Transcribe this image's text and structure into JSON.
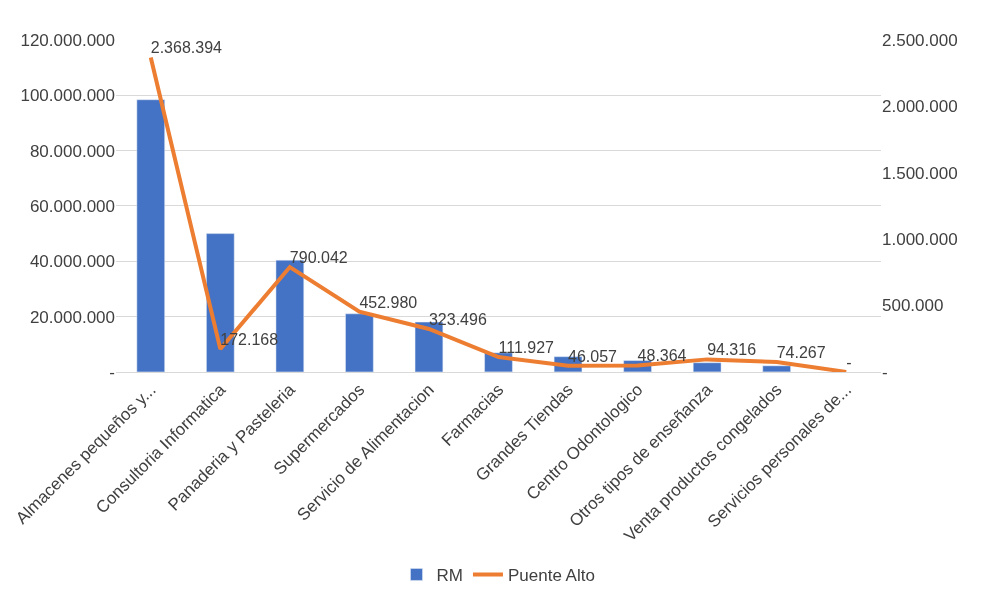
{
  "chart_data": {
    "type": "bar",
    "categories": [
      "Almacenes pequeños y...",
      "Consultoria Informatica",
      "Panaderia y Pasteleria",
      "Supermercados",
      "Servicio de Alimentacion",
      "Farmacias",
      "Grandes Tiendas",
      "Centro Odontologico",
      "Otros tipos de enseñanza",
      "Venta productos congelados",
      "Servicios personales de..."
    ],
    "series": [
      {
        "name": "RM",
        "color": "#4472c4",
        "values": [
          98400000,
          50000000,
          40400000,
          21000000,
          18000000,
          6900000,
          5500000,
          4100000,
          3300000,
          2200000,
          null
        ]
      },
      {
        "name": "Puente Alto",
        "type": "line",
        "axis": "y2",
        "color": "#ed7d31",
        "values": [
          2368394,
          172168,
          790042,
          452980,
          323496,
          111927,
          46057,
          48364,
          94316,
          74267,
          0
        ],
        "value_labels": [
          "2.368.394",
          "172.168",
          "790.042",
          "452.980",
          "323.496",
          "111.927",
          "46.057",
          "48.364",
          "94.316",
          "74.267",
          "-"
        ]
      }
    ],
    "ylim": [
      0,
      120000000
    ],
    "yticks": [
      {
        "value": 0,
        "label": "-"
      },
      {
        "value": 20000000,
        "label": "20.000.000"
      },
      {
        "value": 40000000,
        "label": "40.000.000"
      },
      {
        "value": 60000000,
        "label": "60.000.000"
      },
      {
        "value": 80000000,
        "label": "80.000.000"
      },
      {
        "value": 100000000,
        "label": "100.000.000"
      },
      {
        "value": 120000000,
        "label": "120.000.000"
      }
    ],
    "y2lim": [
      0,
      2500000
    ],
    "y2ticks": [
      {
        "value": 0,
        "label": "-"
      },
      {
        "value": 500000,
        "label": "500.000"
      },
      {
        "value": 1000000,
        "label": "1.000.000"
      },
      {
        "value": 1500000,
        "label": "1.500.000"
      },
      {
        "value": 2000000,
        "label": "2.000.000"
      },
      {
        "value": 2500000,
        "label": "2.500.000"
      }
    ],
    "grid": "y",
    "legend": "bottom",
    "marker": "none",
    "line_style": "solid"
  }
}
